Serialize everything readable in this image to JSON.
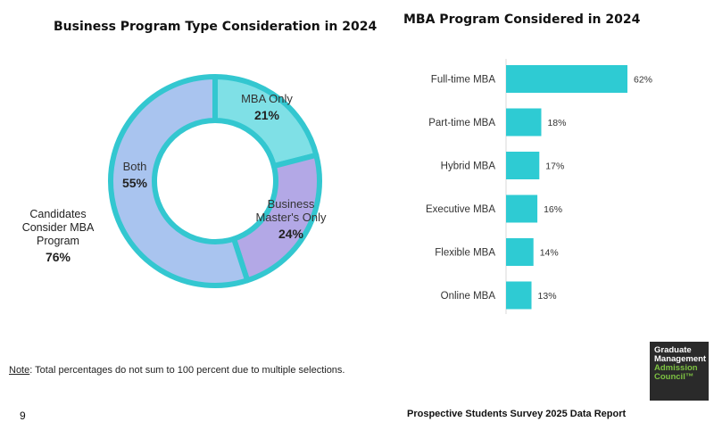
{
  "left_chart": {
    "title": "Business Program Type Consideration in 2024"
  },
  "right_chart": {
    "title": "MBA Program Considered in 2024"
  },
  "chart_data": [
    {
      "type": "pie",
      "title": "Business Program Type Consideration in 2024",
      "donut": true,
      "slices": [
        {
          "label": "MBA Only",
          "value": 21,
          "display": "21%",
          "color": "#7fe0e6"
        },
        {
          "label": "Business Master's Only",
          "value": 24,
          "display": "24%",
          "color": "#b3a8e6"
        },
        {
          "label": "Both",
          "value": 55,
          "display": "55%",
          "color": "#a9c4ef"
        }
      ],
      "ring_color": "#33c7d0",
      "annotation": {
        "label": "Candidates Consider MBA Program",
        "value": "76%"
      }
    },
    {
      "type": "bar",
      "orientation": "horizontal",
      "title": "MBA Program Considered in 2024",
      "categories": [
        "Full-time MBA",
        "Part-time MBA",
        "Hybrid MBA",
        "Executive MBA",
        "Flexible MBA",
        "Online MBA"
      ],
      "values": [
        62,
        18,
        17,
        16,
        14,
        13
      ],
      "value_labels": [
        "62%",
        "18%",
        "17%",
        "16%",
        "14%",
        "13%"
      ],
      "color": "#2ecbd3",
      "xlim": [
        0,
        62
      ]
    }
  ],
  "note": {
    "prefix": "Note",
    "text": ": Total percentages do not sum to 100 percent due to multiple selections."
  },
  "page_number": "9",
  "footer_text": "Prospective Students Survey 2025 Data Report",
  "logo": {
    "line1": "Graduate",
    "line2": "Management",
    "line3": "Admission",
    "line4": "Council™"
  }
}
